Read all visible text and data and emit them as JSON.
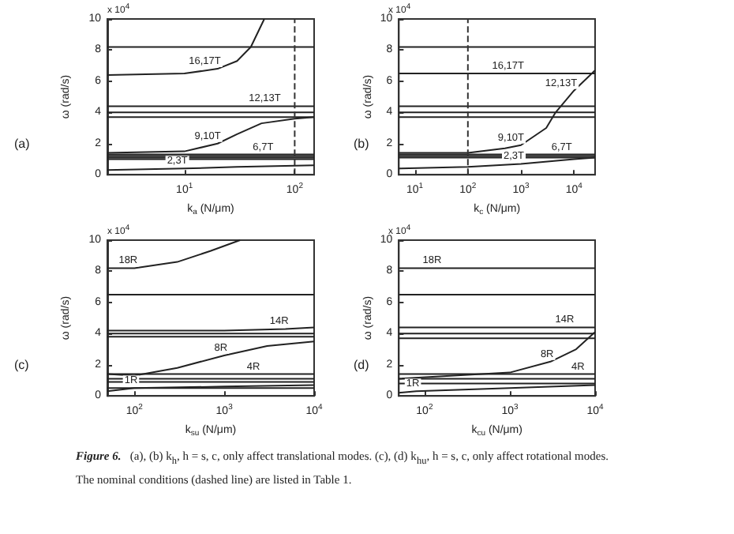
{
  "chart_data": [
    {
      "type": "line",
      "title": "(a)",
      "xlabel": "k$_{a}$ (N/μm)",
      "ylabel": "ω (rad/s)",
      "log": "x",
      "xlim": [
        2,
        150
      ],
      "ylim": [
        0,
        10
      ],
      "xticks": [
        {
          "value": 10,
          "label": "10$^{1}$"
        },
        {
          "value": 100,
          "label": "10$^{2}$"
        }
      ],
      "yticks": [
        0,
        2,
        4,
        6,
        8,
        10
      ],
      "ref_lines": [
        {
          "axis": "x",
          "value": 100,
          "line_style": "dashed",
          "color": "#333333"
        }
      ],
      "annotations": [
        "x 10$^{4}$",
        "Figure 6.",
        "(a), (b) k$_{h}$, h = s, c, only affect translational modes. (c), (d) k$_{hu}$, h = s, c, only affect rotational modes. The nominal conditions (dashed line) are listed in Table 1.",
        {
          "text": "16,17T",
          "x": 20,
          "y": 6.8
        },
        {
          "text": "12,13T",
          "x": 70,
          "y": 4.4
        },
        {
          "text": "9,10T",
          "x": 20,
          "y": 2.0
        },
        {
          "text": "6,7T",
          "x": 60,
          "y": 1.3
        },
        {
          "text": "2,3T",
          "x": 10,
          "y": 0.4
        }
      ],
      "series": [
        {
          "color": "#222222",
          "x": [
            2,
            150
          ],
          "values": [
            8.2,
            8.2
          ]
        },
        {
          "color": "#222222",
          "x": [
            2,
            10,
            20,
            30,
            40,
            53
          ],
          "values": [
            6.4,
            6.5,
            6.8,
            7.3,
            8.2,
            10
          ]
        },
        {
          "color": "#222222",
          "x": [
            2,
            70,
            150
          ],
          "values": [
            4.4,
            4.4,
            4.4
          ]
        },
        {
          "color": "#222222",
          "x": [
            2,
            150
          ],
          "values": [
            4.0,
            4.0
          ]
        },
        {
          "color": "#222222",
          "x": [
            2,
            150
          ],
          "values": [
            3.7,
            3.7
          ]
        },
        {
          "color": "#222222",
          "x": [
            2,
            10,
            20,
            30,
            50,
            100,
            150
          ],
          "values": [
            1.4,
            1.5,
            2.0,
            2.6,
            3.3,
            3.6,
            3.7
          ]
        },
        {
          "color": "#222222",
          "x": [
            2,
            60,
            150
          ],
          "values": [
            1.3,
            1.3,
            1.3
          ]
        },
        {
          "color": "#222222",
          "x": [
            2,
            150
          ],
          "values": [
            1.2,
            1.2
          ]
        },
        {
          "color": "#222222",
          "x": [
            2,
            150
          ],
          "values": [
            1.1,
            1.1
          ]
        },
        {
          "color": "#222222",
          "x": [
            2,
            150
          ],
          "values": [
            1.0,
            1.0
          ]
        },
        {
          "color": "#222222",
          "x": [
            2,
            10,
            30,
            150
          ],
          "values": [
            0.3,
            0.4,
            0.5,
            0.6
          ]
        }
      ]
    },
    {
      "type": "line",
      "title": "(b)",
      "xlabel": "k$_{c}$ (N/μm)",
      "ylabel": "ω (rad/s)",
      "log": "x",
      "xlim": [
        5,
        25000
      ],
      "ylim": [
        0,
        10
      ],
      "xticks": [
        {
          "value": 10,
          "label": "10$^{1}$"
        },
        {
          "value": 100,
          "label": "10$^{2}$"
        },
        {
          "value": 1000,
          "label": "10$^{3}$"
        },
        {
          "value": 10000,
          "label": "10$^{4}$"
        }
      ],
      "yticks": [
        0,
        2,
        4,
        6,
        8,
        10
      ],
      "ref_lines": [
        {
          "axis": "x",
          "value": 100,
          "line_style": "dashed",
          "color": "#333333"
        }
      ],
      "annotations": [
        "x 10$^{4}$",
        {
          "text": "16,17T",
          "x": 1000,
          "y": 6.5
        },
        {
          "text": "12,13T",
          "x": 10000,
          "y": 5.4
        },
        {
          "text": "9,10T",
          "x": 1000,
          "y": 1.9
        },
        {
          "text": "6,7T",
          "x": 8000,
          "y": 1.3
        },
        {
          "text": "2,3T",
          "x": 1000,
          "y": 0.7
        }
      ],
      "series": [
        {
          "color": "#222222",
          "x": [
            5,
            25000
          ],
          "values": [
            8.2,
            8.2
          ]
        },
        {
          "color": "#222222",
          "x": [
            5,
            1000,
            25000
          ],
          "values": [
            6.5,
            6.5,
            6.5
          ]
        },
        {
          "color": "#222222",
          "x": [
            5,
            25000
          ],
          "values": [
            4.4,
            4.4
          ]
        },
        {
          "color": "#222222",
          "x": [
            5,
            25000
          ],
          "values": [
            4.0,
            4.0
          ]
        },
        {
          "color": "#222222",
          "x": [
            5,
            25000
          ],
          "values": [
            3.7,
            3.7
          ]
        },
        {
          "color": "#222222",
          "x": [
            5,
            100,
            500,
            1000,
            3000,
            4500,
            10000,
            25000
          ],
          "values": [
            1.4,
            1.4,
            1.7,
            1.9,
            3.0,
            4.0,
            5.4,
            6.7
          ]
        },
        {
          "color": "#222222",
          "x": [
            5,
            8000,
            25000
          ],
          "values": [
            1.3,
            1.3,
            1.3
          ]
        },
        {
          "color": "#222222",
          "x": [
            5,
            25000
          ],
          "values": [
            1.2,
            1.2
          ]
        },
        {
          "color": "#222222",
          "x": [
            5,
            25000
          ],
          "values": [
            1.1,
            1.1
          ]
        },
        {
          "color": "#222222",
          "x": [
            5,
            100,
            1000,
            10000,
            25000
          ],
          "values": [
            0.4,
            0.5,
            0.7,
            1.0,
            1.1
          ]
        }
      ]
    },
    {
      "type": "line",
      "title": "(c)",
      "xlabel": "k$_{su}$ (N/μm)",
      "ylabel": "ω (rad/s)",
      "log": "x",
      "xlim": [
        50,
        10000
      ],
      "ylim": [
        0,
        10
      ],
      "xticks": [
        {
          "value": 100,
          "label": "10$^{2}$"
        },
        {
          "value": 1000,
          "label": "10$^{3}$"
        },
        {
          "value": 10000,
          "label": "10$^{4}$"
        }
      ],
      "yticks": [
        0,
        2,
        4,
        6,
        8,
        10
      ],
      "annotations": [
        "x 10$^{4}$",
        {
          "text": "18R",
          "x": 100,
          "y": 8.2
        },
        {
          "text": "14R",
          "x": 4800,
          "y": 4.3
        },
        {
          "text": "8R",
          "x": 1000,
          "y": 2.6
        },
        {
          "text": "4R",
          "x": 2300,
          "y": 1.4
        },
        {
          "text": "1R",
          "x": 100,
          "y": 0.5
        }
      ],
      "series": [
        {
          "color": "#222222",
          "x": [
            50,
            100,
            300,
            700,
            1500
          ],
          "values": [
            8.2,
            8.2,
            8.6,
            9.3,
            10
          ]
        },
        {
          "color": "#222222",
          "x": [
            50,
            10000
          ],
          "values": [
            6.5,
            6.5
          ]
        },
        {
          "color": "#222222",
          "x": [
            50,
            1000,
            4800,
            10000
          ],
          "values": [
            4.2,
            4.2,
            4.3,
            4.4
          ]
        },
        {
          "color": "#222222",
          "x": [
            50,
            10000
          ],
          "values": [
            4.0,
            4.0
          ]
        },
        {
          "color": "#222222",
          "x": [
            50,
            10000
          ],
          "values": [
            3.8,
            3.8
          ]
        },
        {
          "color": "#222222",
          "x": [
            50,
            100,
            300,
            1000,
            3000,
            10000
          ],
          "values": [
            1.4,
            1.3,
            1.8,
            2.6,
            3.2,
            3.5
          ]
        },
        {
          "color": "#222222",
          "x": [
            50,
            2300,
            10000
          ],
          "values": [
            1.4,
            1.4,
            1.4
          ]
        },
        {
          "color": "#222222",
          "x": [
            50,
            10000
          ],
          "values": [
            1.1,
            1.1
          ]
        },
        {
          "color": "#222222",
          "x": [
            50,
            10000
          ],
          "values": [
            0.9,
            0.9
          ]
        },
        {
          "color": "#222222",
          "x": [
            50,
            100,
            1000,
            10000
          ],
          "values": [
            0.3,
            0.5,
            0.6,
            0.7
          ]
        },
        {
          "color": "#222222",
          "x": [
            50,
            10000
          ],
          "values": [
            0.5,
            0.5
          ]
        }
      ]
    },
    {
      "type": "line",
      "title": "(d)",
      "xlabel": "k$_{cu}$ (N/μm)",
      "ylabel": "ω (rad/s)",
      "log": "x",
      "xlim": [
        50,
        10000
      ],
      "ylim": [
        0,
        10
      ],
      "xticks": [
        {
          "value": 100,
          "label": "10$^{2}$"
        },
        {
          "value": 1000,
          "label": "10$^{3}$"
        },
        {
          "value": 10000,
          "label": "10$^{4}$"
        }
      ],
      "yticks": [
        0,
        2,
        4,
        6,
        8,
        10
      ],
      "annotations": [
        "x 10$^{4}$",
        {
          "text": "18R",
          "x": 145,
          "y": 8.2
        },
        {
          "text": "14R",
          "x": 5200,
          "y": 4.4
        },
        {
          "text": "8R",
          "x": 3000,
          "y": 2.2
        },
        {
          "text": "4R",
          "x": 6900,
          "y": 1.4
        },
        {
          "text": "1R",
          "x": 80,
          "y": 0.3
        }
      ],
      "series": [
        {
          "color": "#222222",
          "x": [
            50,
            145,
            10000
          ],
          "values": [
            8.2,
            8.2,
            8.2
          ]
        },
        {
          "color": "#222222",
          "x": [
            50,
            10000
          ],
          "values": [
            6.5,
            6.5
          ]
        },
        {
          "color": "#222222",
          "x": [
            50,
            5200,
            10000
          ],
          "values": [
            4.4,
            4.4,
            4.4
          ]
        },
        {
          "color": "#222222",
          "x": [
            50,
            10000
          ],
          "values": [
            4.0,
            4.0
          ]
        },
        {
          "color": "#222222",
          "x": [
            50,
            10000
          ],
          "values": [
            3.7,
            3.7
          ]
        },
        {
          "color": "#222222",
          "x": [
            50,
            1000,
            3000,
            6000,
            10000
          ],
          "values": [
            1.1,
            1.5,
            2.2,
            3.0,
            4.1
          ]
        },
        {
          "color": "#222222",
          "x": [
            50,
            6900,
            10000
          ],
          "values": [
            1.4,
            1.4,
            1.4
          ]
        },
        {
          "color": "#222222",
          "x": [
            50,
            10000
          ],
          "values": [
            1.1,
            1.1
          ]
        },
        {
          "color": "#222222",
          "x": [
            50,
            10000
          ],
          "values": [
            0.8,
            0.8
          ]
        },
        {
          "color": "#222222",
          "x": [
            50,
            80,
            1000,
            10000
          ],
          "values": [
            0.2,
            0.3,
            0.5,
            0.7
          ]
        }
      ]
    }
  ]
}
